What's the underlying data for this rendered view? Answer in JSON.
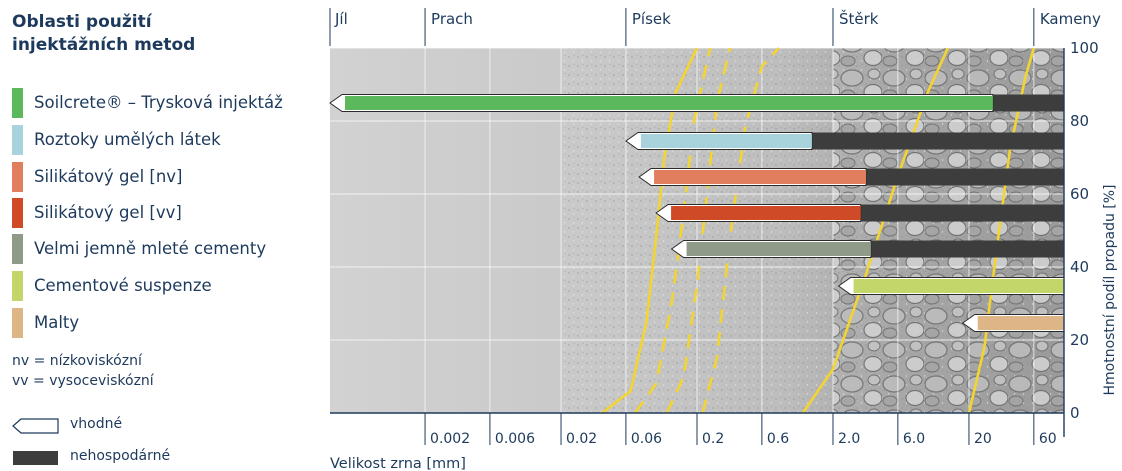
{
  "legend": {
    "title_line1": "Oblasti použití",
    "title_line2": "injektážních metod",
    "items": [
      {
        "label": "Soilcrete® – Trysková injektáž",
        "color": "#5cb85c"
      },
      {
        "label": "Roztoky umělých látek",
        "color": "#a8d3dc"
      },
      {
        "label": "Silikátový gel [nv]",
        "color": "#e07e5e"
      },
      {
        "label": "Silikátový gel [vv]",
        "color": "#cf4a26"
      },
      {
        "label": "Velmi jemně mleté cementy",
        "color": "#8f9a88"
      },
      {
        "label": "Cementové suspenze",
        "color": "#c3d66a"
      },
      {
        "label": "Malty",
        "color": "#deb587"
      }
    ],
    "abbr_nv": "nv = nízkoviskózní",
    "abbr_vv": "vv = vysoceviskózní",
    "key_suitable": "vhodné",
    "key_uneconomic": "nehospodárné"
  },
  "chart_data": {
    "type": "bar",
    "soil_classes": [
      "Jíl",
      "Prach",
      "Písek",
      "Štěrk",
      "Kameny"
    ],
    "x_ticks": [
      "0.002",
      "0.006",
      "0.02",
      "0.06",
      "0.2",
      "0.6",
      "2.0",
      "6.0",
      "20",
      "60"
    ],
    "xlabel": "Velikost zrna [mm]",
    "ylabel": "Hmotnostní podíl propadu [%]",
    "y_ticks": [
      "0",
      "20",
      "40",
      "60",
      "80",
      "100"
    ],
    "ylim": [
      0,
      100
    ],
    "x_scale": "log",
    "suitable_color": "#ffffff",
    "uneconomic_color": "#3d3d3d",
    "curve_color": "#f3d431",
    "series": [
      {
        "name": "Soilcrete® – Trysková injektáž",
        "suitable_from_mm": 0.0004,
        "uneconomic_from_mm": 30,
        "to_mm": 100
      },
      {
        "name": "Roztoky umělých látek",
        "suitable_from_mm": 0.06,
        "uneconomic_from_mm": 1.4,
        "to_mm": 100
      },
      {
        "name": "Silikátový gel [nv]",
        "suitable_from_mm": 0.075,
        "uneconomic_from_mm": 3.5,
        "to_mm": 100
      },
      {
        "name": "Silikátový gel [vv]",
        "suitable_from_mm": 0.1,
        "uneconomic_from_mm": 3.2,
        "to_mm": 100
      },
      {
        "name": "Velmi jemně mleté cementy",
        "suitable_from_mm": 0.13,
        "uneconomic_from_mm": 3.8,
        "to_mm": 100
      },
      {
        "name": "Cementové suspenze",
        "suitable_from_mm": 2.2,
        "uneconomic_from_mm": 100,
        "to_mm": 100
      },
      {
        "name": "Malty",
        "suitable_from_mm": 18,
        "uneconomic_from_mm": 100,
        "to_mm": 100
      }
    ]
  }
}
